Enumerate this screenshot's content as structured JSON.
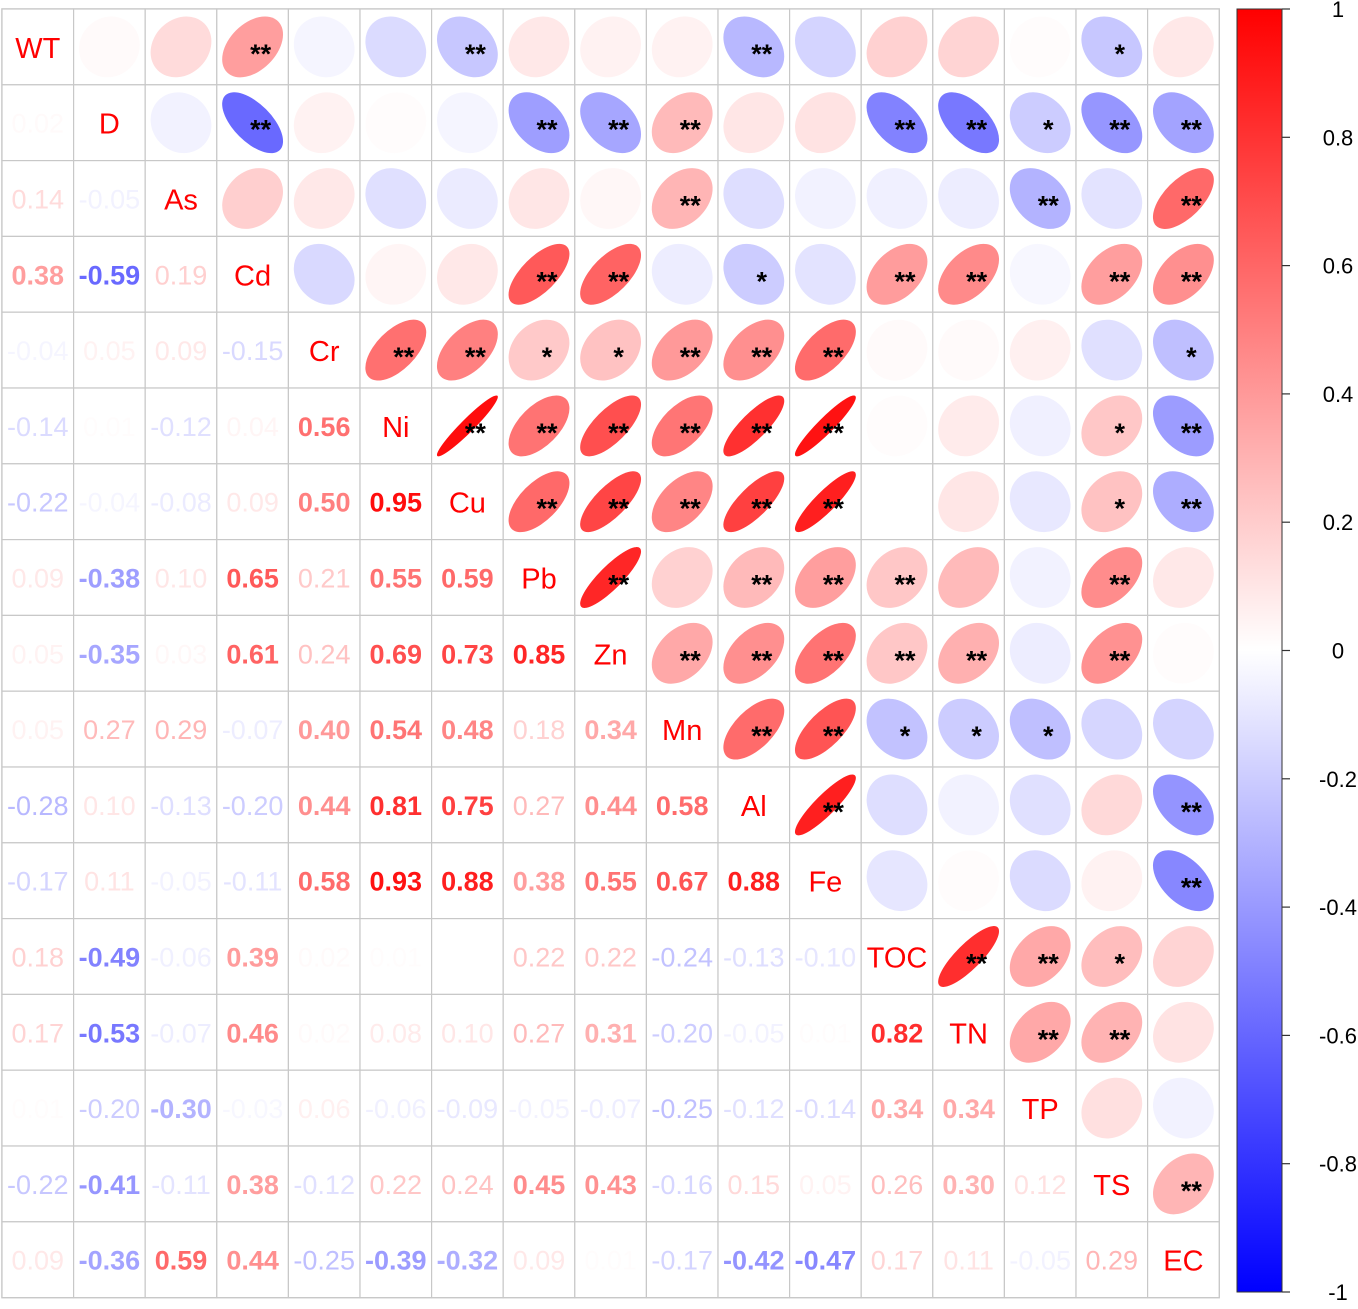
{
  "chart_data": {
    "type": "heatmap",
    "subtype": "correlation-matrix-mixed",
    "upper_method": "ellipse",
    "lower_method": "number",
    "diagonal": "variable-names",
    "variables": [
      "WT",
      "D",
      "As",
      "Cd",
      "Cr",
      "Ni",
      "Cu",
      "Pb",
      "Zn",
      "Mn",
      "Al",
      "Fe",
      "TOC",
      "TN",
      "TP",
      "TS",
      "EC"
    ],
    "matrix": [
      [
        1,
        0.02,
        0.14,
        0.38,
        -0.04,
        -0.14,
        -0.22,
        0.09,
        0.05,
        0.05,
        -0.28,
        -0.17,
        0.18,
        0.17,
        0.01,
        -0.22,
        0.09
      ],
      [
        0.02,
        1,
        -0.05,
        -0.59,
        0.05,
        0.01,
        -0.04,
        -0.38,
        -0.35,
        0.27,
        0.1,
        0.11,
        -0.49,
        -0.53,
        -0.2,
        -0.41,
        -0.36
      ],
      [
        0.14,
        -0.05,
        1,
        0.19,
        0.09,
        -0.12,
        -0.08,
        0.1,
        0.03,
        0.29,
        -0.13,
        -0.05,
        -0.06,
        -0.07,
        -0.3,
        -0.11,
        0.59
      ],
      [
        0.38,
        -0.59,
        0.19,
        1,
        -0.15,
        0.04,
        0.09,
        0.65,
        0.61,
        -0.07,
        -0.2,
        -0.11,
        0.39,
        0.46,
        -0.03,
        0.38,
        0.44
      ],
      [
        -0.04,
        0.05,
        0.09,
        -0.15,
        1,
        0.56,
        0.5,
        0.21,
        0.24,
        0.4,
        0.44,
        0.58,
        0.02,
        0.02,
        0.06,
        -0.12,
        -0.25
      ],
      [
        -0.14,
        0.01,
        -0.12,
        0.04,
        0.56,
        1,
        0.95,
        0.55,
        0.69,
        0.54,
        0.81,
        0.93,
        0.01,
        0.08,
        -0.06,
        0.22,
        -0.39
      ],
      [
        -0.22,
        -0.04,
        -0.08,
        0.09,
        0.5,
        0.95,
        1,
        0.59,
        0.73,
        0.48,
        0.75,
        0.88,
        0.0,
        0.1,
        -0.09,
        0.24,
        -0.32
      ],
      [
        0.09,
        -0.38,
        0.1,
        0.65,
        0.21,
        0.55,
        0.59,
        1,
        0.85,
        0.18,
        0.27,
        0.38,
        0.22,
        0.27,
        -0.05,
        0.45,
        0.09
      ],
      [
        0.05,
        -0.35,
        0.03,
        0.61,
        0.24,
        0.69,
        0.73,
        0.85,
        1,
        0.34,
        0.44,
        0.55,
        0.22,
        0.31,
        -0.07,
        0.43,
        0.01
      ],
      [
        0.05,
        0.27,
        0.29,
        -0.07,
        0.4,
        0.54,
        0.48,
        0.18,
        0.34,
        1,
        0.58,
        0.67,
        -0.24,
        -0.2,
        -0.25,
        -0.16,
        -0.17
      ],
      [
        -0.28,
        0.1,
        -0.13,
        -0.2,
        0.44,
        0.81,
        0.75,
        0.27,
        0.44,
        0.58,
        1,
        0.88,
        -0.13,
        -0.05,
        -0.12,
        0.15,
        -0.42
      ],
      [
        -0.17,
        0.11,
        -0.05,
        -0.11,
        0.58,
        0.93,
        0.88,
        0.38,
        0.55,
        0.67,
        0.88,
        1,
        -0.1,
        0.01,
        -0.14,
        0.05,
        -0.47
      ],
      [
        0.18,
        -0.49,
        -0.06,
        0.39,
        0.02,
        0.01,
        0.0,
        0.22,
        0.22,
        -0.24,
        -0.13,
        -0.1,
        1,
        0.82,
        0.34,
        0.26,
        0.17
      ],
      [
        0.17,
        -0.53,
        -0.07,
        0.46,
        0.02,
        0.08,
        0.1,
        0.27,
        0.31,
        -0.2,
        -0.05,
        0.01,
        0.82,
        1,
        0.34,
        0.3,
        0.11
      ],
      [
        0.01,
        -0.2,
        -0.3,
        -0.03,
        0.06,
        -0.06,
        -0.09,
        -0.05,
        -0.07,
        -0.25,
        -0.12,
        -0.14,
        0.34,
        0.34,
        1,
        0.12,
        -0.05
      ],
      [
        -0.22,
        -0.41,
        -0.11,
        0.38,
        -0.12,
        0.22,
        0.24,
        0.45,
        0.43,
        -0.16,
        0.15,
        0.05,
        0.26,
        0.3,
        0.12,
        1,
        0.29
      ],
      [
        0.09,
        -0.36,
        0.59,
        0.44,
        -0.25,
        -0.39,
        -0.32,
        0.09,
        0.01,
        -0.17,
        -0.42,
        -0.47,
        0.17,
        0.11,
        -0.05,
        0.29,
        1
      ]
    ],
    "significance": [
      [
        "",
        "",
        "",
        "**",
        "",
        "",
        "**",
        "",
        "",
        "",
        "**",
        "",
        "",
        "",
        "",
        "*",
        ""
      ],
      [
        "",
        "",
        "",
        "**",
        "",
        "",
        "",
        "**",
        "**",
        "**",
        "",
        "",
        "**",
        "**",
        "*",
        "**",
        "**"
      ],
      [
        "",
        "",
        "",
        "",
        "",
        "",
        "",
        "",
        "",
        "**",
        "",
        "",
        "",
        "",
        "**",
        "",
        "**"
      ],
      [
        "**",
        "**",
        "",
        "",
        "",
        "",
        "",
        "**",
        "**",
        "",
        "*",
        "",
        "**",
        "**",
        "",
        "**",
        "**"
      ],
      [
        "",
        "",
        "",
        "",
        "",
        "**",
        "**",
        "*",
        "*",
        "**",
        "**",
        "**",
        "",
        "",
        "",
        "",
        "*"
      ],
      [
        "",
        "",
        "",
        "",
        "**",
        "",
        "**",
        "**",
        "**",
        "**",
        "**",
        "**",
        "",
        "",
        "",
        "*",
        "**"
      ],
      [
        "**",
        "",
        "",
        "",
        "**",
        "**",
        "",
        "**",
        "**",
        "**",
        "**",
        "**",
        "",
        "",
        "",
        "*",
        "**"
      ],
      [
        "",
        "**",
        "",
        "**",
        "*",
        "**",
        "**",
        "",
        "**",
        "",
        "**",
        "**",
        "**",
        "",
        "",
        "**",
        ""
      ],
      [
        "",
        "**",
        "",
        "**",
        "*",
        "**",
        "**",
        "**",
        "",
        "**",
        "**",
        "**",
        "**",
        "**",
        "",
        "**",
        ""
      ],
      [
        "",
        "**",
        "**",
        "",
        "**",
        "**",
        "**",
        "",
        "**",
        "",
        "**",
        "**",
        "*",
        "*",
        "*",
        "",
        ""
      ],
      [
        "**",
        "",
        "",
        "*",
        "**",
        "**",
        "**",
        "**",
        "**",
        "**",
        "",
        "**",
        "",
        "",
        "",
        "",
        "**"
      ],
      [
        "",
        "",
        "",
        "",
        "**",
        "**",
        "**",
        "**",
        "**",
        "**",
        "**",
        "",
        "",
        "",
        "",
        "",
        "**"
      ],
      [
        "",
        "**",
        "",
        "**",
        "",
        "",
        "",
        "**",
        "**",
        "*",
        "",
        "",
        "",
        "**",
        "**",
        "*",
        ""
      ],
      [
        "",
        "**",
        "",
        "**",
        "",
        "",
        "",
        "",
        "**",
        "*",
        "",
        "",
        "**",
        "",
        "**",
        "**",
        ""
      ],
      [
        "",
        "*",
        "**",
        "",
        "",
        "",
        "",
        "",
        "",
        "*",
        "",
        "",
        "**",
        "**",
        "",
        "",
        ""
      ],
      [
        "*",
        "**",
        "",
        "**",
        "",
        "*",
        "*",
        "**",
        "**",
        "",
        "",
        "",
        "*",
        "**",
        "",
        "",
        "**"
      ],
      [
        "",
        "**",
        "**",
        "**",
        "*",
        "**",
        "**",
        "",
        "",
        "",
        "**",
        "**",
        "",
        "",
        "",
        "**",
        ""
      ]
    ],
    "colorbar": {
      "min": -1,
      "max": 1,
      "ticks": [
        "1",
        "0.8",
        "0.6",
        "0.4",
        "0.2",
        "0",
        "-0.2",
        "-0.4",
        "-0.6",
        "-0.8",
        "-1"
      ],
      "colors": {
        "negative": "#0000ff",
        "zero": "#ffffff",
        "positive": "#ff0000"
      }
    },
    "colors": {
      "diagonal_text": "#ff0000",
      "grid": "#c8c8c8",
      "star": "#000000"
    }
  }
}
